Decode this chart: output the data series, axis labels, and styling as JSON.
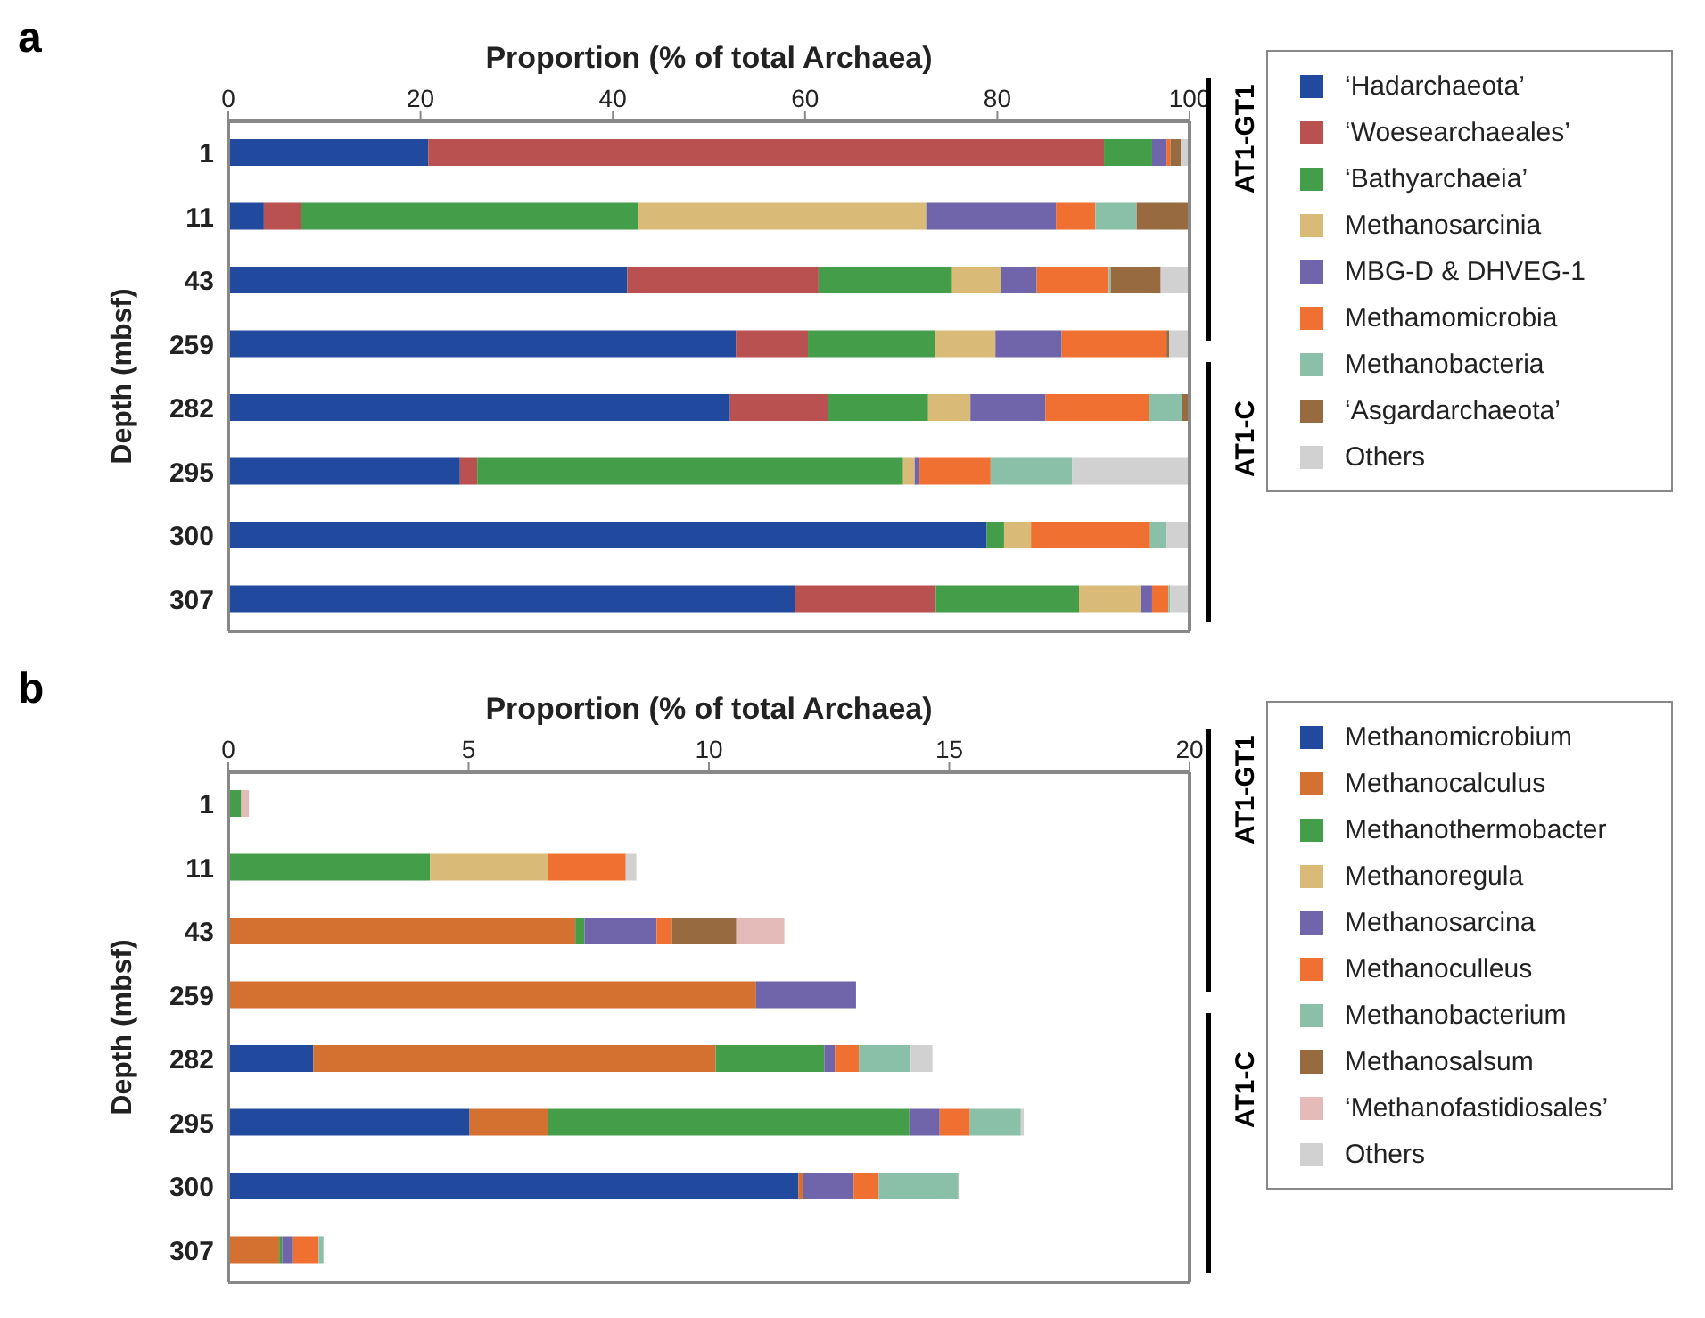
{
  "chart_data": [
    {
      "type": "bar",
      "orientation": "horizontal",
      "stacked": true,
      "xlabel": "Proportion (% of total Archaea)",
      "ylabel": "Depth (mbsf)",
      "annotations": [
        "a",
        "AT1-GT1",
        "AT1-C"
      ],
      "categories": [
        "1",
        "11",
        "43",
        "259",
        "282",
        "295",
        "300",
        "307"
      ],
      "xlim": [
        0,
        100
      ],
      "xticks": [
        0,
        20,
        40,
        60,
        80,
        100
      ],
      "legend": "right",
      "series": [
        {
          "name": "‘Hadarchaeota’",
          "color": "#214a9f",
          "values": [
            20.8,
            3.7,
            41.5,
            52.8,
            52.2,
            24.1,
            78.9,
            59.0
          ]
        },
        {
          "name": "‘Woesearchaeales’",
          "color": "#b95151",
          "values": [
            70.3,
            3.9,
            19.9,
            7.5,
            10.2,
            1.8,
            0,
            14.6
          ]
        },
        {
          "name": "‘Bathyarchaeia’",
          "color": "#449d48",
          "values": [
            5.0,
            35.0,
            13.9,
            13.2,
            10.4,
            44.3,
            1.8,
            14.9
          ]
        },
        {
          "name": "Methanosarcinia",
          "color": "#d9ba76",
          "values": [
            0,
            30.0,
            5.1,
            6.3,
            4.4,
            1.2,
            2.8,
            6.4
          ]
        },
        {
          "name": "MBG-D & DHVEG-1",
          "color": "#7064aa",
          "values": [
            1.5,
            13.5,
            3.7,
            6.9,
            7.8,
            0.5,
            0,
            1.2
          ]
        },
        {
          "name": "Methamomicrobia",
          "color": "#f07032",
          "values": [
            0.4,
            4.1,
            7.5,
            10.9,
            10.8,
            7.4,
            12.4,
            1.7
          ]
        },
        {
          "name": "Methanobacteria",
          "color": "#8bc0a8",
          "values": [
            0,
            4.3,
            0.2,
            0,
            3.4,
            8.5,
            1.7,
            0.2
          ]
        },
        {
          "name": "‘Asgardarchaeota’",
          "color": "#986a40",
          "values": [
            1.1,
            5.5,
            5.2,
            0.3,
            0.8,
            0,
            0,
            0
          ]
        },
        {
          "name": "Others",
          "color": "#d0d1d0",
          "values": [
            0.9,
            0,
            3.0,
            2.1,
            0,
            12.2,
            2.4,
            2.2
          ]
        }
      ]
    },
    {
      "type": "bar",
      "orientation": "horizontal",
      "stacked": true,
      "xlabel": "Proportion (% of total Archaea)",
      "ylabel": "Depth (mbsf)",
      "annotations": [
        "b",
        "AT1-GT1",
        "AT1-C"
      ],
      "categories": [
        "1",
        "11",
        "43",
        "259",
        "282",
        "295",
        "300",
        "307"
      ],
      "xlim": [
        0,
        20
      ],
      "xticks": [
        0,
        5,
        10,
        15,
        20
      ],
      "legend": "right",
      "series": [
        {
          "name": "Methanomicrobium",
          "color": "#214a9f",
          "values": [
            0,
            0,
            0,
            0,
            1.77,
            5.02,
            11.86,
            0
          ]
        },
        {
          "name": "Methanocalculus",
          "color": "#d47131",
          "values": [
            0,
            0,
            7.22,
            10.98,
            8.37,
            1.63,
            0.1,
            1.06
          ]
        },
        {
          "name": "Methanothermobacter",
          "color": "#449d48",
          "values": [
            0.27,
            4.2,
            0.19,
            0,
            2.26,
            7.52,
            0,
            0.06
          ]
        },
        {
          "name": "Methanoregula",
          "color": "#d9ba76",
          "values": [
            0,
            2.44,
            0,
            0,
            0,
            0,
            0,
            0
          ]
        },
        {
          "name": "Methanosarcina",
          "color": "#7064aa",
          "values": [
            0,
            0,
            1.5,
            2.08,
            0.22,
            0.63,
            1.05,
            0.23
          ]
        },
        {
          "name": "Methanoculleus",
          "color": "#f07032",
          "values": [
            0,
            1.63,
            0.32,
            0,
            0.5,
            0.63,
            0.52,
            0.53
          ]
        },
        {
          "name": "Methanobacterium",
          "color": "#8bc0a8",
          "values": [
            0,
            0,
            0,
            0,
            1.08,
            1.06,
            1.66,
            0.1
          ]
        },
        {
          "name": "Methanosalsum",
          "color": "#986a40",
          "values": [
            0,
            0,
            1.34,
            0,
            0,
            0,
            0,
            0
          ]
        },
        {
          "name": "‘Methanofastidiosales’",
          "color": "#e4bbb9",
          "values": [
            0.16,
            0,
            1.0,
            0,
            0,
            0,
            0,
            0
          ]
        },
        {
          "name": "Others",
          "color": "#d0d1d0",
          "values": [
            0,
            0.22,
            0,
            0,
            0.45,
            0.06,
            0,
            0
          ]
        }
      ]
    }
  ]
}
